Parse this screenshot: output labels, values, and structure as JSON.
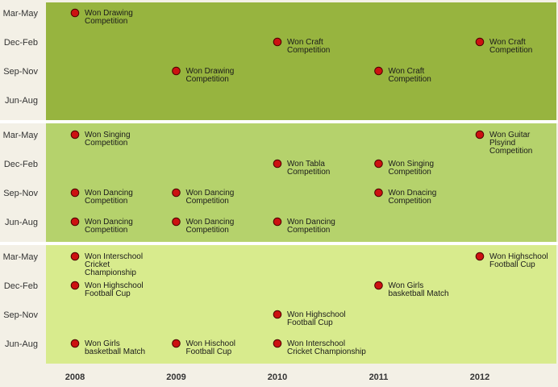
{
  "chart_data": {
    "type": "scatter",
    "x_ticks": [
      "2008",
      "2009",
      "2010",
      "2011",
      "2012"
    ],
    "y_ticks": [
      "Jun-Aug",
      "Sep-Nov",
      "Dec-Feb",
      "Mar-May"
    ],
    "colors": {
      "background": "#f3f0e6",
      "marker": "#cc1111",
      "marker_stroke": "#4a0000",
      "separator": "#ffffff"
    },
    "panels": [
      {
        "color": "#97b43f",
        "events": [
          {
            "year": 2008.0,
            "season": "Mar-May",
            "label": [
              "Won Drawing",
              "Competition"
            ]
          },
          {
            "year": 2010.0,
            "season": "Dec-Feb",
            "label": [
              "Won Craft",
              "Competition"
            ]
          },
          {
            "year": 2012.0,
            "season": "Dec-Feb",
            "label": [
              "Won Craft",
              "Competition"
            ]
          },
          {
            "year": 2009.0,
            "season": "Sep-Nov",
            "label": [
              "Won Drawing",
              "Competition"
            ]
          },
          {
            "year": 2011.0,
            "season": "Sep-Nov",
            "label": [
              "Won Craft",
              "Competition"
            ]
          }
        ]
      },
      {
        "color": "#b5d26c",
        "events": [
          {
            "year": 2008.0,
            "season": "Mar-May",
            "label": [
              "Won Singing",
              "Competition"
            ]
          },
          {
            "year": 2012.0,
            "season": "Mar-May",
            "label": [
              "Won Guitar",
              "Plsyind",
              "Competition"
            ]
          },
          {
            "year": 2010.0,
            "season": "Dec-Feb",
            "label": [
              "Won Tabla",
              "Competition"
            ]
          },
          {
            "year": 2011.0,
            "season": "Dec-Feb",
            "label": [
              "Won Singing",
              "Competition"
            ]
          },
          {
            "year": 2008.0,
            "season": "Sep-Nov",
            "label": [
              "Won Dancing",
              "Competition"
            ]
          },
          {
            "year": 2009.0,
            "season": "Sep-Nov",
            "label": [
              "Won Dancing",
              "Competition"
            ]
          },
          {
            "year": 2011.0,
            "season": "Sep-Nov",
            "label": [
              "Won Dnacing",
              "Competition"
            ]
          },
          {
            "year": 2008.0,
            "season": "Jun-Aug",
            "label": [
              "Won Dancing",
              "Competition"
            ]
          },
          {
            "year": 2009.0,
            "season": "Jun-Aug",
            "label": [
              "Won Dancing",
              "Competition"
            ]
          },
          {
            "year": 2010.0,
            "season": "Jun-Aug",
            "label": [
              "Won Dancing",
              "Competition"
            ]
          }
        ]
      },
      {
        "color": "#d8eb8d",
        "events": [
          {
            "year": 2008.0,
            "season": "Mar-May",
            "label": [
              "Won Interschool",
              "Cricket",
              "Championship"
            ]
          },
          {
            "year": 2012.0,
            "season": "Mar-May",
            "label": [
              "Won Highschool",
              "Football Cup"
            ]
          },
          {
            "year": 2008.0,
            "season": "Dec-Feb",
            "label": [
              "Won Highschool",
              "Football Cup"
            ]
          },
          {
            "year": 2011.0,
            "season": "Dec-Feb",
            "label": [
              "Won Girls",
              "basketball Match"
            ]
          },
          {
            "year": 2010.0,
            "season": "Sep-Nov",
            "label": [
              "Won Highschool",
              "Football Cup"
            ]
          },
          {
            "year": 2008.0,
            "season": "Jun-Aug",
            "label": [
              "Won Girls",
              "basketball Match"
            ]
          },
          {
            "year": 2009.0,
            "season": "Jun-Aug",
            "label": [
              "Won Hischool",
              "Football Cup"
            ]
          },
          {
            "year": 2010.0,
            "season": "Jun-Aug",
            "label": [
              "Won Interschool",
              "Cricket Championship"
            ]
          }
        ]
      }
    ]
  }
}
